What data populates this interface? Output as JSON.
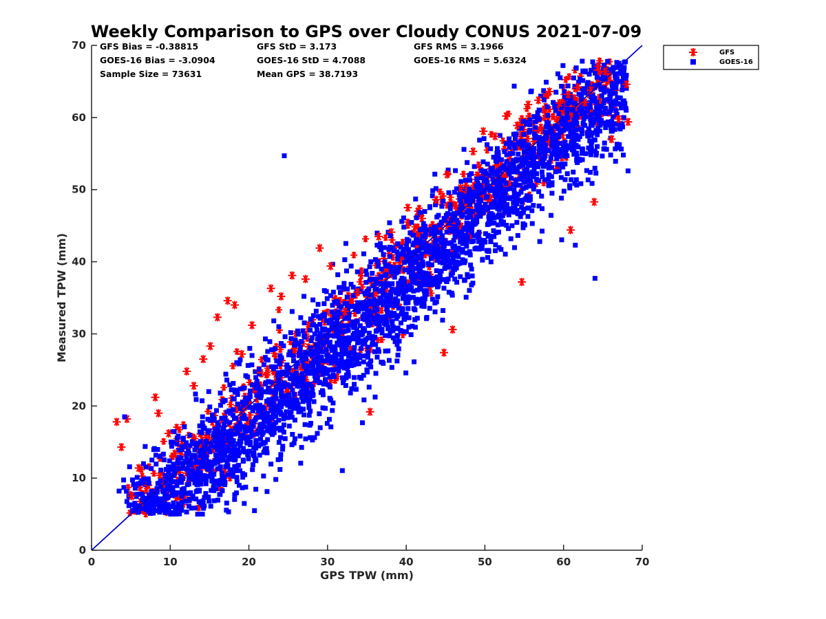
{
  "chart_data": {
    "type": "scatter",
    "title": "Weekly Comparison to GPS over Cloudy CONUS 2021-07-09",
    "xlabel": "GPS TPW (mm)",
    "ylabel": "Measured TPW (mm)",
    "xlim": [
      0,
      70
    ],
    "ylim": [
      0,
      70
    ],
    "xticks": [
      "0",
      "10",
      "20",
      "30",
      "40",
      "50",
      "60",
      "70"
    ],
    "yticks": [
      "0",
      "10",
      "20",
      "30",
      "40",
      "50",
      "60",
      "70"
    ],
    "grid": false,
    "legend_position": "outside-top-right",
    "reference_line": {
      "x": [
        0,
        70
      ],
      "y": [
        0,
        70
      ],
      "color": "#0000cc"
    },
    "stats": [
      [
        "GFS Bias = -0.38815",
        "GFS StD = 3.173",
        "GFS RMS = 3.1966"
      ],
      [
        "GOES-16 Bias = -3.0904",
        "GOES-16 StD = 4.7088",
        "GOES-16 RMS = 5.6324"
      ],
      [
        "Sample Size = 73631",
        "Mean GPS = 38.7193",
        ""
      ]
    ],
    "series": [
      {
        "name": "GFS",
        "marker": "asterisk",
        "color": "#ff0000",
        "x": [
          3.2,
          3.8,
          4.5,
          5.1,
          6.0,
          7.2,
          8.1,
          8.5,
          9.8,
          10.6,
          12.1,
          13.0,
          14.2,
          15.1,
          16.0,
          17.3,
          18.2,
          19.1,
          20.4,
          21.3,
          22.8,
          24.1,
          25.5,
          27.2,
          29.0,
          30.4,
          32.2,
          33.8,
          35.4,
          36.5,
          38.1,
          40.2,
          42.0,
          43.8,
          45.2,
          46.9,
          48.5,
          49.8,
          51.3,
          52.7,
          54.1,
          55.5,
          56.8,
          58.2,
          59.5,
          60.6,
          61.8,
          62.7,
          63.5,
          64.4,
          65.3,
          66.1,
          67.0,
          68.0,
          68.2,
          63.9,
          60.9,
          54.7,
          44.8,
          45.9
        ],
        "y": [
          17.8,
          14.3,
          18.2,
          7.5,
          11.4,
          9.0,
          21.2,
          19.0,
          16.2,
          13.4,
          24.8,
          22.8,
          26.5,
          28.3,
          32.3,
          34.6,
          34.0,
          27.2,
          31.2,
          25.0,
          36.3,
          35.2,
          38.1,
          37.6,
          41.9,
          39.4,
          33.1,
          35.8,
          19.2,
          43.5,
          44.1,
          47.5,
          46.0,
          48.6,
          52.1,
          50.2,
          55.3,
          58.1,
          57.4,
          60.2,
          58.9,
          61.8,
          62.4,
          63.6,
          62.0,
          63.2,
          64.2,
          62.1,
          63.8,
          67.1,
          66.4,
          57.0,
          59.8,
          64.6,
          59.4,
          48.3,
          44.4,
          37.2,
          27.4,
          30.6
        ]
      },
      {
        "name": "GOES-16",
        "marker": "square",
        "color": "#0000ff",
        "x": [
          3.5,
          4.2,
          5.0,
          5.8,
          6.6,
          7.3,
          8.0,
          8.7,
          9.5,
          10.1,
          11.0,
          11.8,
          12.5,
          13.3,
          14.0,
          14.9,
          15.6,
          16.4,
          17.2,
          18.0,
          18.9,
          19.6,
          20.4,
          21.3,
          22.1,
          22.9,
          23.8,
          24.6,
          25.5,
          26.2,
          27.0,
          27.9,
          28.8,
          29.6,
          30.4,
          31.3,
          32.1,
          33.0,
          33.8,
          34.6,
          35.5,
          36.3,
          37.1,
          38.0,
          38.9,
          39.7,
          40.5,
          41.3,
          42.2,
          43.0,
          43.9,
          44.7,
          45.6,
          46.4,
          47.3,
          48.1,
          48.9,
          49.8,
          50.6,
          51.5,
          52.3,
          53.2,
          54.0,
          54.9,
          55.7,
          56.6,
          57.4,
          58.3,
          59.1,
          60.0,
          60.8,
          61.7,
          62.5,
          63.4,
          64.2,
          65.1,
          66.0,
          66.8,
          67.6,
          68.2,
          24.5,
          28.7,
          35.0,
          42.1,
          57.8,
          61.5,
          64.0,
          14.2,
          9.3,
          6.0
        ],
        "y": [
          8.2,
          18.5,
          6.3,
          10.1,
          12.0,
          9.3,
          14.1,
          13.0,
          11.2,
          15.0,
          12.3,
          17.1,
          14.5,
          20.9,
          16.3,
          22.0,
          18.2,
          20.1,
          23.6,
          21.0,
          26.4,
          24.2,
          27.0,
          25.1,
          29.3,
          27.8,
          31.0,
          29.6,
          33.1,
          30.4,
          35.2,
          32.0,
          34.1,
          36.0,
          35.3,
          38.2,
          37.0,
          39.4,
          38.6,
          41.1,
          40.0,
          42.3,
          41.0,
          43.6,
          42.5,
          44.8,
          44.0,
          46.1,
          45.3,
          47.5,
          46.2,
          48.4,
          47.9,
          50.1,
          49.0,
          51.3,
          50.5,
          52.4,
          52.0,
          53.9,
          53.1,
          55.0,
          54.2,
          56.5,
          55.4,
          57.2,
          56.8,
          58.1,
          57.6,
          59.0,
          58.6,
          60.1,
          59.2,
          61.4,
          60.3,
          62.0,
          61.0,
          56.3,
          54.8,
          52.6,
          54.7,
          16.2,
          25.0,
          44.5,
          64.9,
          42.3,
          37.7,
          6.1,
          6.5,
          5.4
        ]
      }
    ]
  }
}
